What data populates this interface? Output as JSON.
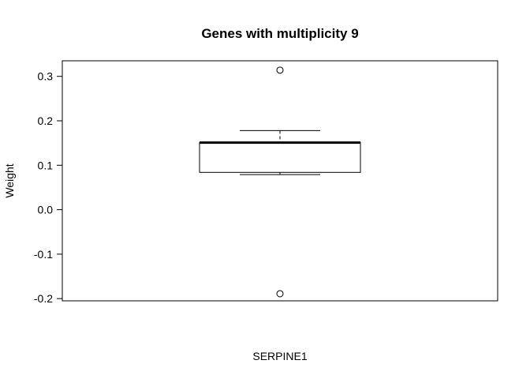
{
  "chart_data": {
    "type": "boxplot",
    "title": "Genes with multiplicity 9",
    "xlabel": "SERPINE1",
    "ylabel": "Weight",
    "ylim": [
      -0.205,
      0.335
    ],
    "yticks": [
      -0.2,
      -0.1,
      0.0,
      0.1,
      0.2,
      0.3
    ],
    "ytick_labels": [
      "-0.2",
      "-0.1",
      "0.0",
      "0.1",
      "0.2",
      "0.3"
    ],
    "grid": false,
    "box": {
      "whisker_low": 0.079,
      "q1": 0.084,
      "median": 0.151,
      "q3": 0.151,
      "whisker_high": 0.178,
      "outliers": [
        0.314,
        -0.189
      ]
    }
  }
}
